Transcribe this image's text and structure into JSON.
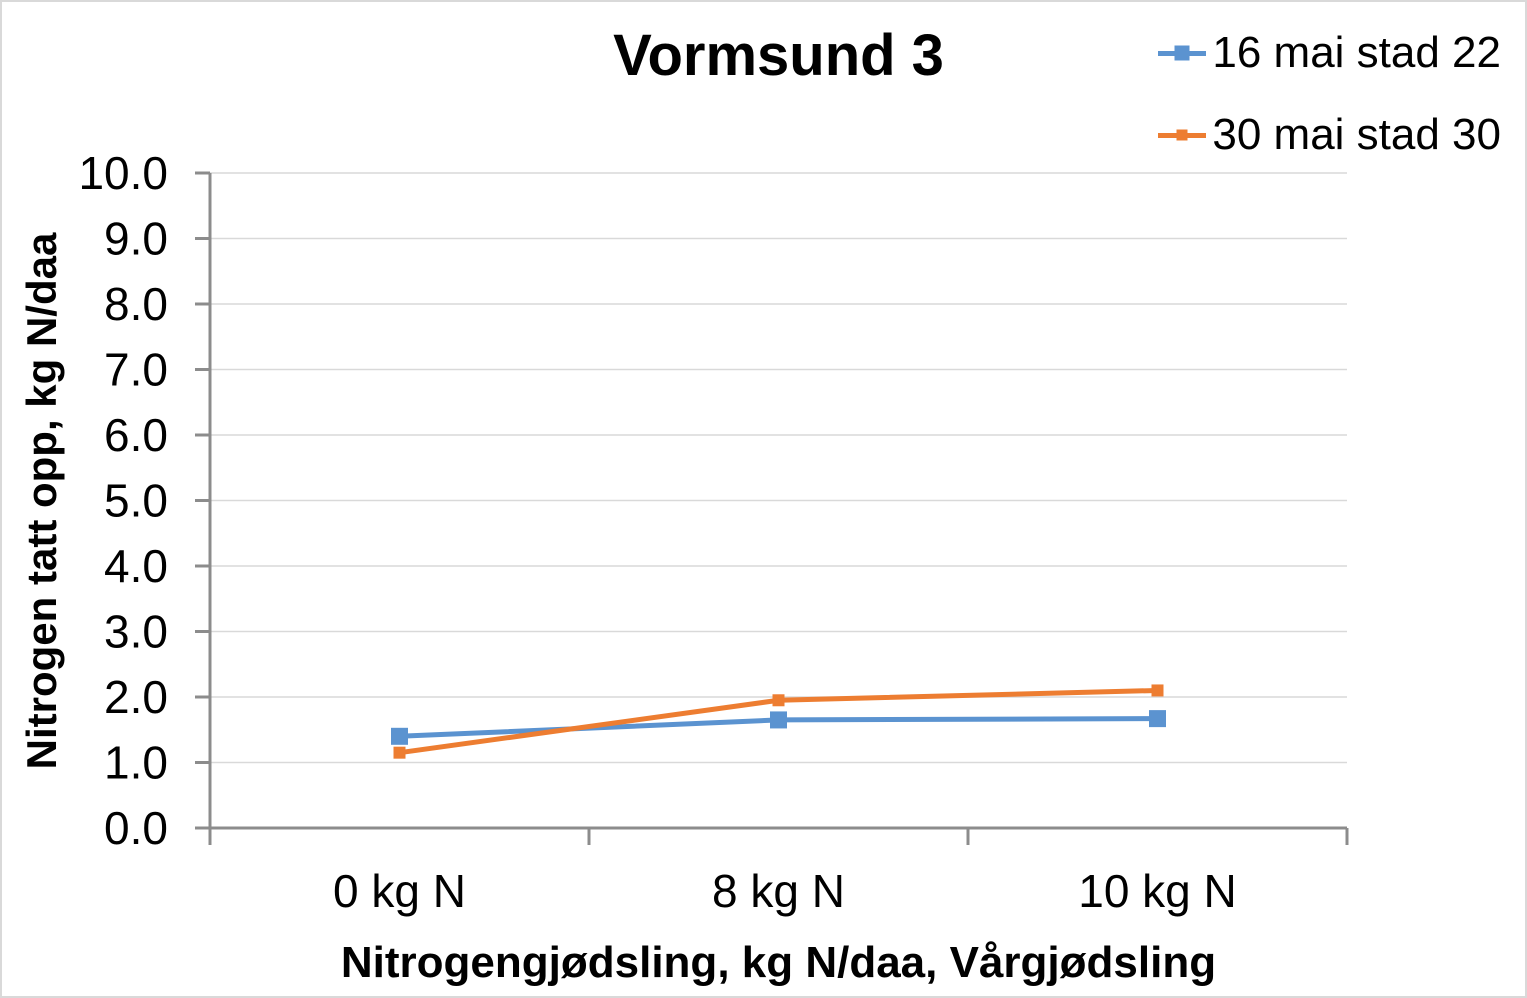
{
  "chart_data": {
    "type": "line",
    "title": "Vormsund 3",
    "categories": [
      "0 kg N",
      "8 kg N",
      "10 kg N"
    ],
    "series": [
      {
        "name": "16 mai stad 22",
        "color": "#5B93D0",
        "marker": "square",
        "marker_size": 17,
        "legend_marker_size": 15,
        "values": [
          1.4,
          1.65,
          1.67
        ]
      },
      {
        "name": "30 mai stad 30",
        "color": "#ED7D31",
        "marker": "square",
        "marker_size": 12,
        "legend_marker_size": 11,
        "values": [
          1.15,
          1.95,
          2.1
        ]
      }
    ],
    "xlabel": "Nitrogengjødsling, kg N/daa, Vårgjødsling",
    "ylabel": "Nitrogen tatt opp, kg N/daa",
    "ylim": [
      0,
      10
    ],
    "ytick_step": 1,
    "ytick_decimals": 1,
    "grid": "horizontal",
    "legend_position": "top-right",
    "colors": {
      "gridline": "#d9d9d9",
      "axis": "#8c8c8c",
      "text": "#000000",
      "frame_border": "#d9d9d9",
      "background": "#ffffff"
    }
  }
}
